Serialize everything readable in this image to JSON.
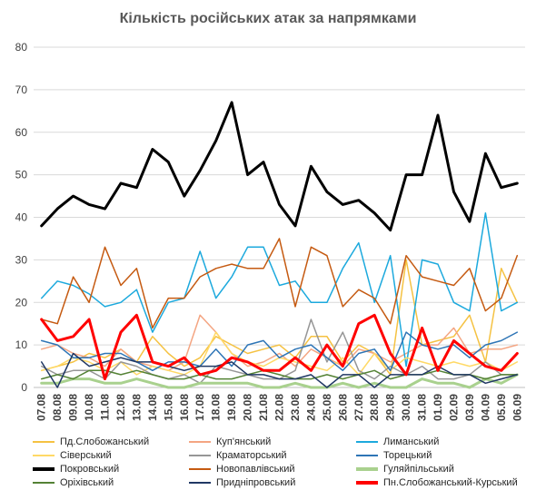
{
  "chart_data": {
    "type": "line",
    "title": "Кількість російських атак за напрямками",
    "xlabel": "",
    "ylabel": "",
    "ylim": [
      0,
      80
    ],
    "yticks": [
      0,
      10,
      20,
      30,
      40,
      50,
      60,
      70,
      80
    ],
    "grid": true,
    "legend_position": "bottom",
    "categories": [
      "07.08",
      "08.08",
      "09.08",
      "10.08",
      "11.08",
      "12.08",
      "13.08",
      "14.08",
      "15.08",
      "16.08",
      "17.08",
      "18.08",
      "19.08",
      "20.08",
      "21.08",
      "22.08",
      "23.08",
      "24.08",
      "25.08",
      "26.08",
      "27.08",
      "28.08",
      "29.08",
      "30.08",
      "31.08",
      "01.09",
      "02.09",
      "03.09",
      "04.09",
      "05.09",
      "06.09"
    ],
    "x": [
      "07.08",
      "08.08",
      "09.08",
      "10.08",
      "11.08",
      "12.08",
      "13.08",
      "14.08",
      "15.08",
      "16.08",
      "17.08",
      "18.08",
      "19.08",
      "20.08",
      "21.08",
      "22.08",
      "23.08",
      "24.08",
      "25.08",
      "26.08",
      "27.08",
      "28.08",
      "29.08",
      "30.08",
      "31.08",
      "01.09",
      "02.09",
      "03.09",
      "04.09",
      "05.09",
      "06.09"
    ],
    "series": [
      {
        "name": "Пд.Слобожанський",
        "color": "#F5C242",
        "width": 1.5,
        "values": [
          4,
          5,
          6,
          8,
          7,
          9,
          6,
          12,
          8,
          5,
          7,
          12,
          10,
          8,
          9,
          10,
          7,
          12,
          12,
          6,
          10,
          8,
          3,
          30,
          10,
          11,
          12,
          17,
          6,
          28,
          20
        ]
      },
      {
        "name": "Куп'янський",
        "color": "#F4A582",
        "width": 1.5,
        "values": [
          9,
          10,
          8,
          7,
          5,
          9,
          6,
          5,
          4,
          6,
          17,
          13,
          8,
          5,
          6,
          8,
          5,
          9,
          7,
          5,
          9,
          8,
          6,
          8,
          10,
          10,
          14,
          8,
          9,
          9,
          10
        ]
      },
      {
        "name": "Лиманський",
        "color": "#1CA9DD",
        "width": 1.5,
        "values": [
          21,
          25,
          24,
          22,
          19,
          20,
          23,
          13,
          20,
          21,
          32,
          21,
          26,
          33,
          33,
          24,
          25,
          20,
          20,
          28,
          34,
          20,
          31,
          5,
          30,
          29,
          20,
          18,
          41,
          18,
          20
        ]
      },
      {
        "name": "Сіверський",
        "color": "#FFD966",
        "width": 1.5,
        "values": [
          4,
          5,
          7,
          6,
          4,
          6,
          3,
          5,
          4,
          3,
          5,
          13,
          8,
          6,
          5,
          7,
          6,
          5,
          4,
          7,
          3,
          8,
          4,
          7,
          6,
          5,
          6,
          5,
          6,
          4,
          6
        ]
      },
      {
        "name": "Краматорський",
        "color": "#969696",
        "width": 1.5,
        "values": [
          5,
          3,
          4,
          4,
          2,
          6,
          5,
          3,
          2,
          3,
          1,
          5,
          4,
          3,
          2,
          2,
          4,
          16,
          6,
          13,
          4,
          2,
          5,
          3,
          5,
          2,
          2,
          3,
          6,
          3,
          3
        ]
      },
      {
        "name": "Торецький",
        "color": "#2E75B6",
        "width": 1.5,
        "values": [
          11,
          10,
          7,
          7,
          8,
          8,
          6,
          4,
          6,
          6,
          5,
          9,
          5,
          10,
          11,
          7,
          9,
          10,
          7,
          4,
          8,
          9,
          4,
          13,
          10,
          9,
          10,
          7,
          10,
          11,
          13
        ]
      },
      {
        "name": "Покровський",
        "color": "#000000",
        "width": 3,
        "values": [
          38,
          42,
          45,
          43,
          42,
          48,
          47,
          56,
          53,
          45,
          51,
          58,
          67,
          50,
          53,
          43,
          38,
          52,
          46,
          43,
          44,
          41,
          37,
          50,
          50,
          64,
          46,
          39,
          55,
          47,
          48
        ]
      },
      {
        "name": "Новопавлівський",
        "color": "#C55A11",
        "width": 1.5,
        "values": [
          16,
          15,
          26,
          20,
          33,
          24,
          28,
          14,
          21,
          21,
          26,
          28,
          29,
          28,
          28,
          35,
          19,
          33,
          31,
          19,
          23,
          21,
          15,
          31,
          26,
          25,
          24,
          28,
          18,
          21,
          31
        ]
      },
      {
        "name": "Гуляйпільський",
        "color": "#A9D18E",
        "width": 3,
        "values": [
          1,
          1,
          2,
          2,
          1,
          1,
          2,
          1,
          0,
          0,
          1,
          1,
          1,
          1,
          0,
          0,
          1,
          0,
          0,
          1,
          0,
          1,
          0,
          0,
          2,
          1,
          1,
          0,
          2,
          1,
          3
        ]
      },
      {
        "name": "Оріхівський",
        "color": "#548235",
        "width": 1.5,
        "values": [
          2,
          3,
          2,
          4,
          4,
          3,
          4,
          3,
          2,
          2,
          3,
          2,
          2,
          3,
          4,
          3,
          2,
          2,
          3,
          2,
          3,
          4,
          2,
          3,
          3,
          4,
          3,
          3,
          2,
          3,
          3
        ]
      },
      {
        "name": "Придніпровський",
        "color": "#203864",
        "width": 1.5,
        "values": [
          6,
          0,
          8,
          5,
          6,
          7,
          6,
          6,
          5,
          4,
          5,
          5,
          6,
          3,
          3,
          2,
          2,
          3,
          0,
          3,
          3,
          0,
          3,
          3,
          3,
          5,
          3,
          3,
          1,
          2,
          3
        ]
      },
      {
        "name": "Пн.Слобожанський-Курський",
        "color": "#FF0000",
        "width": 3,
        "values": [
          16,
          11,
          12,
          16,
          2,
          13,
          17,
          6,
          5,
          7,
          3,
          4,
          7,
          6,
          4,
          4,
          7,
          4,
          10,
          5,
          15,
          17,
          8,
          3,
          14,
          4,
          11,
          8,
          5,
          4,
          8
        ]
      }
    ]
  }
}
